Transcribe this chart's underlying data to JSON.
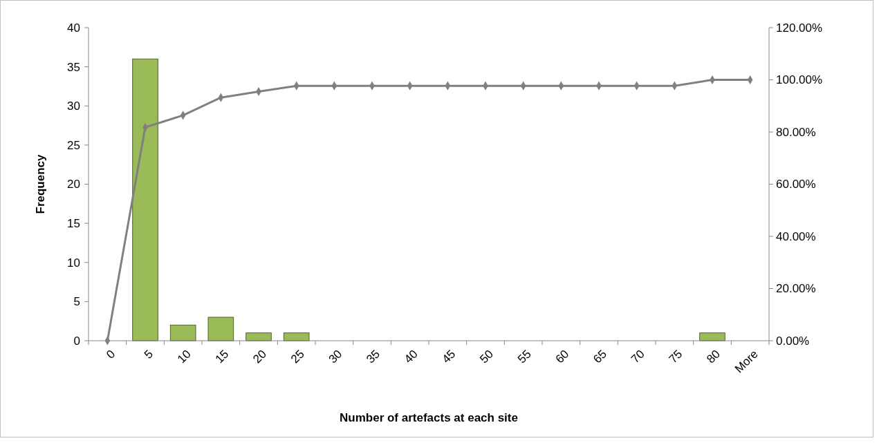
{
  "chart_data": {
    "type": "bar",
    "xlabel": "Number of artefacts at each site",
    "ylabel": "Frequency",
    "categories": [
      "0",
      "5",
      "10",
      "15",
      "20",
      "25",
      "30",
      "35",
      "40",
      "45",
      "50",
      "55",
      "60",
      "65",
      "70",
      "75",
      "80",
      "More"
    ],
    "series": [
      {
        "color": "#9bbb59",
        "values": [
          0,
          36,
          2,
          3,
          1,
          1,
          0,
          0,
          0,
          0,
          0,
          0,
          0,
          0,
          0,
          0,
          1,
          0
        ]
      },
      {
        "type": "line",
        "axis": "y2",
        "color": "#808080",
        "marker": "diamond",
        "values": [
          0,
          81.8,
          86.4,
          93.2,
          95.5,
          97.7,
          97.7,
          97.7,
          97.7,
          97.7,
          97.7,
          97.7,
          97.7,
          97.7,
          97.7,
          97.7,
          100,
          100
        ]
      }
    ],
    "ylim": [
      0,
      40
    ],
    "yticks": [
      0,
      5,
      10,
      15,
      20,
      25,
      30,
      35,
      40
    ],
    "y2lim": [
      0,
      120
    ],
    "y2ticks": [
      {
        "value": 0,
        "label": "0.00%"
      },
      {
        "value": 20,
        "label": "20.00%"
      },
      {
        "value": 40,
        "label": "40.00%"
      },
      {
        "value": 60,
        "label": "60.00%"
      },
      {
        "value": 80,
        "label": "80.00%"
      },
      {
        "value": 100,
        "label": "100.00%"
      },
      {
        "value": 120,
        "label": "120.00%"
      }
    ],
    "grid": false
  }
}
